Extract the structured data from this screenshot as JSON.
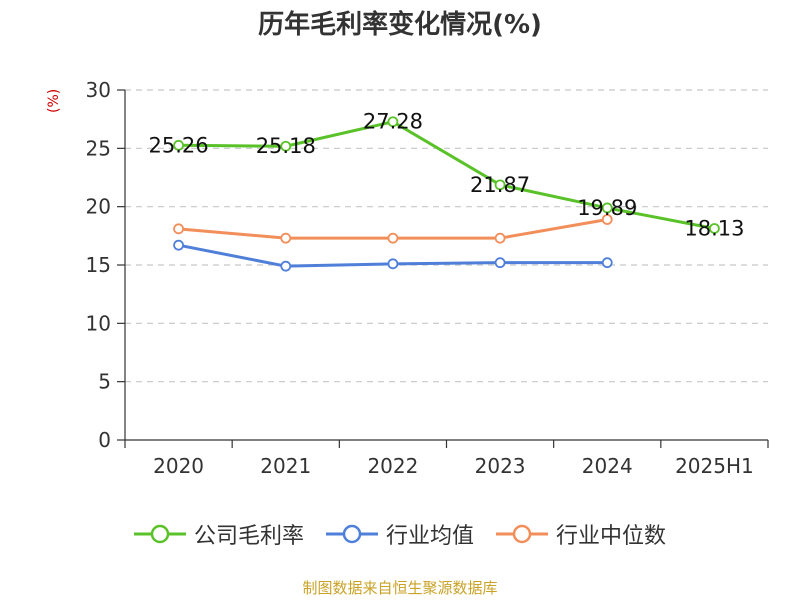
{
  "page": {
    "title": "历年毛利率变化情况(%)",
    "unit_label": "(%)",
    "source": "制图数据来自恒生聚源数据库"
  },
  "chart_data": {
    "type": "line",
    "title": "历年毛利率变化情况(%)",
    "ylabel": "(%)",
    "categories": [
      "2020",
      "2021",
      "2022",
      "2023",
      "2024",
      "2025H1"
    ],
    "ylim": [
      0,
      30
    ],
    "yticks": [
      0,
      5,
      10,
      15,
      20,
      25,
      30
    ],
    "grid": true,
    "legend_position": "bottom",
    "series": [
      {
        "name": "公司毛利率",
        "color": "#5ac229",
        "values": [
          25.26,
          25.18,
          27.28,
          21.87,
          19.89,
          18.13
        ],
        "labels": [
          "25.26",
          "25.18",
          "27.28",
          "21.87",
          "19.89",
          "18.13"
        ]
      },
      {
        "name": "行业均值",
        "color": "#4f7fd9",
        "values": [
          16.7,
          14.9,
          15.1,
          15.2,
          15.2,
          null
        ]
      },
      {
        "name": "行业中位数",
        "color": "#f28e5a",
        "values": [
          18.1,
          17.3,
          17.3,
          17.3,
          18.9,
          null
        ]
      }
    ]
  }
}
